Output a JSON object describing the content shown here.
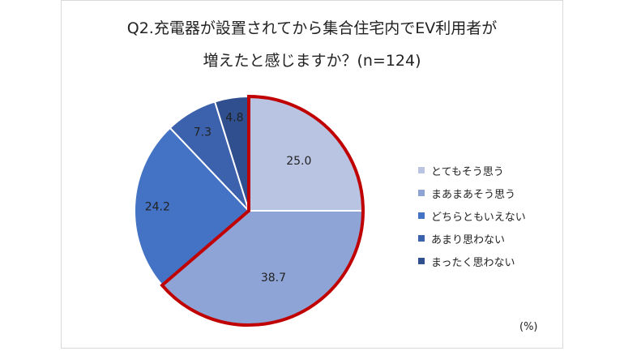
{
  "chart_data": {
    "type": "pie",
    "title_line1": "Q2.充電器が設置されてから集合住宅内でEV利用者が",
    "title_line2": "増えたと感じますか？(n=124)",
    "unit_label": "(%)",
    "categories": [
      "とてもそう思う",
      "まあまあそう思う",
      "どちらともいえない",
      "あまり思わない",
      "まったく思わない"
    ],
    "values": [
      25.0,
      38.7,
      24.2,
      7.3,
      4.8
    ],
    "value_labels": [
      "25.0",
      "38.7",
      "24.2",
      "7.3",
      "4.8"
    ],
    "colors": [
      "#b9c3e2",
      "#8fa4d6",
      "#4472c4",
      "#3d62ad",
      "#2f4f8f"
    ],
    "highlight_color": "#c00000",
    "highlighted_categories": [
      "とてもそう思う",
      "まあまあそう思う"
    ],
    "legend_position": "right",
    "start_angle": "12 o'clock",
    "direction": "clockwise"
  }
}
